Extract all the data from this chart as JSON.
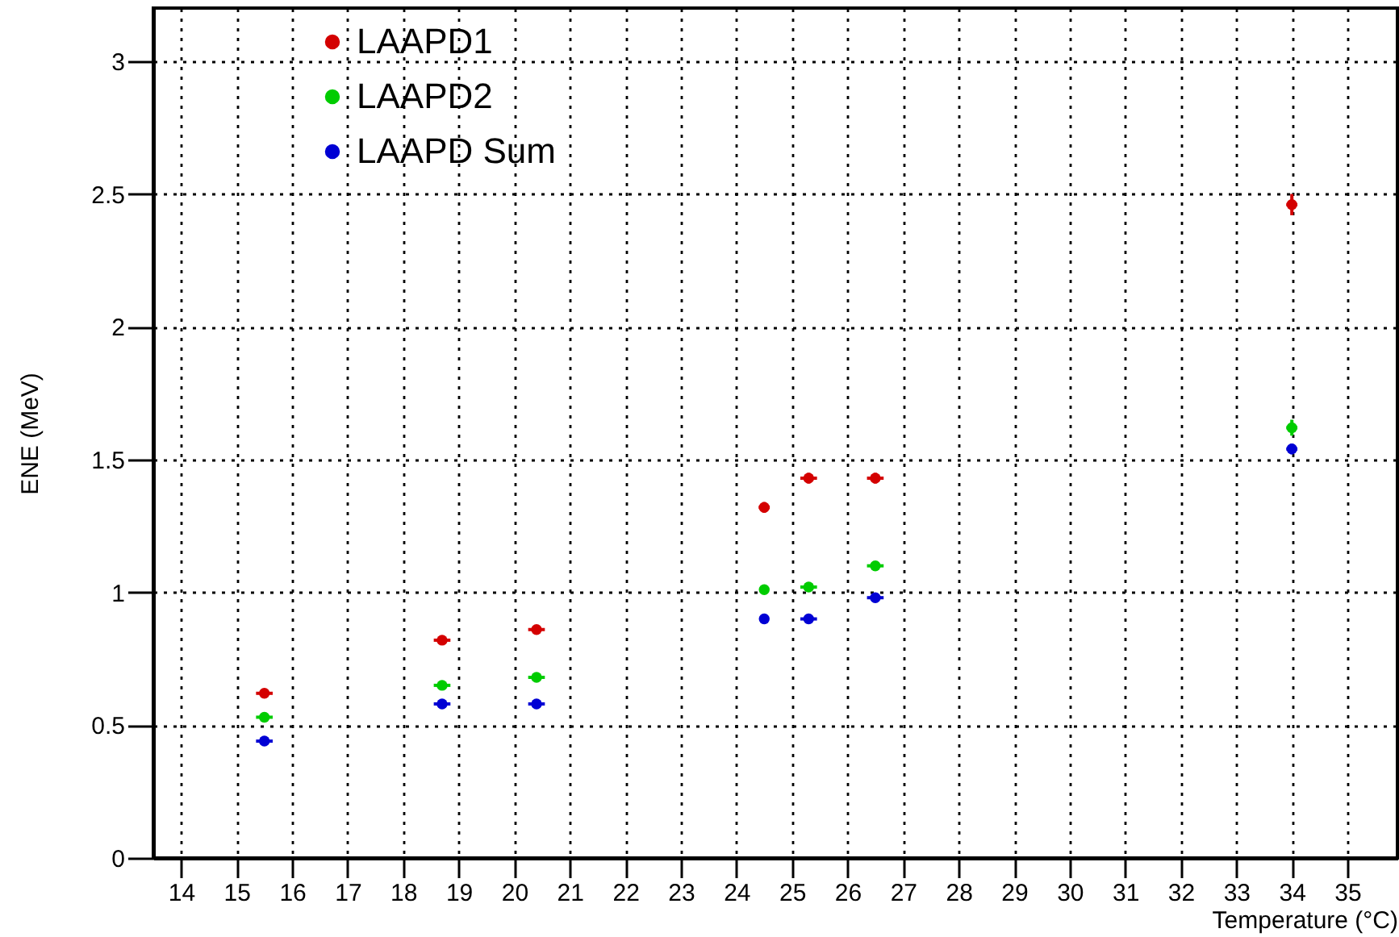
{
  "chart_data": {
    "type": "scatter",
    "xlabel": "Temperature (°C)",
    "ylabel": "ENE (MeV)",
    "x": [
      15.5,
      18.7,
      20.4,
      24.5,
      25.3,
      26.5,
      34
    ],
    "series": [
      {
        "name": "LAAPD1",
        "color": "#d40000",
        "values": [
          0.62,
          0.82,
          0.86,
          1.32,
          1.43,
          1.43,
          2.46
        ],
        "xerrors": [
          0.15,
          0.15,
          0.15,
          0.1,
          0.15,
          0.15,
          0.1
        ],
        "errors": [
          null,
          null,
          null,
          0.02,
          0.02,
          0.02,
          0.04
        ]
      },
      {
        "name": "LAAPD2",
        "color": "#00cc00",
        "values": [
          0.53,
          0.65,
          0.68,
          1.01,
          1.02,
          1.1,
          1.62
        ],
        "xerrors": [
          0.15,
          0.15,
          0.15,
          null,
          0.15,
          0.15,
          0.1
        ],
        "errors": [
          null,
          null,
          null,
          null,
          null,
          null,
          0.03
        ]
      },
      {
        "name": "LAAPD Sum",
        "color": "#0000d4",
        "values": [
          0.44,
          0.58,
          0.58,
          0.9,
          0.9,
          0.98,
          1.54
        ],
        "xerrors": [
          0.15,
          0.15,
          0.15,
          null,
          0.15,
          0.15,
          0.1
        ],
        "errors": [
          null,
          null,
          null,
          null,
          null,
          null,
          0.02
        ]
      }
    ],
    "xlim": [
      13.5,
      35.9
    ],
    "xticks": [
      14,
      15,
      16,
      17,
      18,
      19,
      20,
      21,
      22,
      23,
      24,
      25,
      26,
      27,
      28,
      29,
      30,
      31,
      32,
      33,
      34,
      35
    ],
    "ylim": [
      0,
      3.2
    ],
    "yticks": [
      0,
      0.5,
      1,
      1.5,
      2,
      2.5,
      3
    ],
    "grid": true,
    "legend": "top left",
    "marker": "circle"
  }
}
